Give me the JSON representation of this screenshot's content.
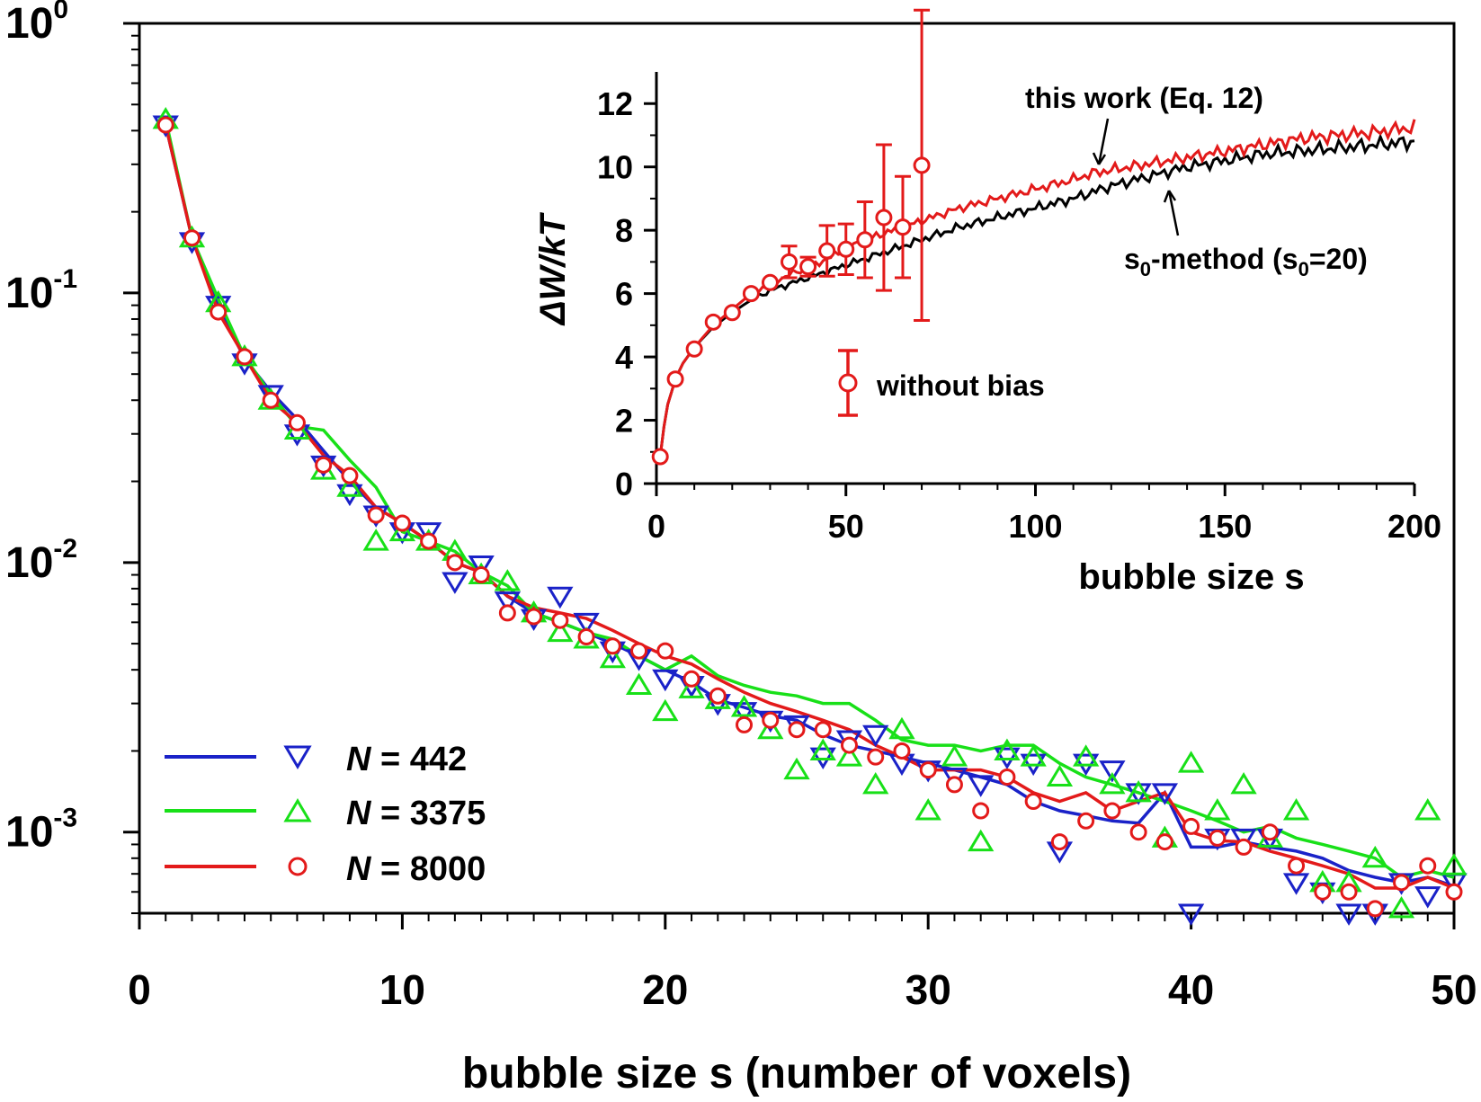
{
  "chart_data": [
    {
      "type": "scatter",
      "xlabel": "bubble size s (number of voxels)",
      "ylabel": "",
      "xlim": [
        0,
        50
      ],
      "ylim": [
        0.0005,
        1
      ],
      "yscale": "log",
      "x_ticks": [
        0,
        10,
        20,
        30,
        40,
        50
      ],
      "y_ticks": [
        {
          "base": "10",
          "exp": "0",
          "value": 1
        },
        {
          "base": "10",
          "exp": "-1",
          "value": 0.1
        },
        {
          "base": "10",
          "exp": "-2",
          "value": 0.01
        },
        {
          "base": "10",
          "exp": "-3",
          "value": 0.001
        }
      ],
      "legend_position": "bottom-left",
      "series": [
        {
          "name": "N = 442",
          "name_italic": "N",
          "name_rest": " = 442",
          "color": "#1a22c8",
          "marker": "triangle-down",
          "x": [
            1,
            2,
            3,
            4,
            5,
            6,
            7,
            8,
            9,
            10,
            11,
            12,
            13,
            14,
            15,
            16,
            17,
            18,
            19,
            20,
            21,
            22,
            23,
            24,
            25,
            26,
            27,
            28,
            29,
            30,
            31,
            32,
            33,
            34,
            35,
            36,
            37,
            38,
            39,
            40,
            41,
            42,
            43,
            44,
            45,
            46,
            47,
            48,
            49,
            50
          ],
          "points": [
            0.42,
            0.155,
            0.09,
            0.055,
            0.042,
            0.03,
            0.023,
            0.018,
            0.015,
            0.013,
            0.013,
            0.0085,
            0.0098,
            0.0072,
            0.0062,
            0.0075,
            0.006,
            0.0047,
            0.0044,
            0.0037,
            0.0035,
            0.003,
            0.0028,
            0.0026,
            0.0025,
            0.0019,
            0.0022,
            0.0023,
            0.0018,
            0.0017,
            0.0016,
            0.0015,
            0.0019,
            0.0018,
            0.00085,
            0.0018,
            0.0017,
            0.0014,
            0.0014,
            0.0005,
            0.00095,
            0.00095,
            0.00095,
            0.00065,
            0.0006,
            0.0005,
            0.0005,
            0.00065,
            0.00058,
            0.00065
          ],
          "line": [
            0.42,
            0.16,
            0.09,
            0.057,
            0.043,
            0.034,
            0.026,
            0.02,
            0.016,
            0.014,
            0.012,
            0.01,
            0.0092,
            0.0075,
            0.0065,
            0.006,
            0.0055,
            0.005,
            0.0045,
            0.004,
            0.0036,
            0.0031,
            0.0029,
            0.0027,
            0.0026,
            0.0023,
            0.0021,
            0.002,
            0.0019,
            0.0018,
            0.0017,
            0.0016,
            0.0015,
            0.0013,
            0.0012,
            0.00115,
            0.0011,
            0.00108,
            0.0014,
            0.00088,
            0.00088,
            0.00092,
            0.00088,
            0.00085,
            0.0008,
            0.00072,
            0.00068,
            0.00065,
            0.00068,
            0.00063
          ]
        },
        {
          "name": "N = 3375",
          "name_italic": "N",
          "name_rest": " = 3375",
          "color": "#18e018",
          "marker": "triangle-up",
          "x": [
            1,
            2,
            3,
            4,
            5,
            6,
            7,
            8,
            9,
            10,
            11,
            12,
            13,
            14,
            15,
            16,
            17,
            18,
            19,
            20,
            21,
            22,
            23,
            24,
            25,
            26,
            27,
            28,
            29,
            30,
            31,
            32,
            33,
            34,
            35,
            36,
            37,
            38,
            39,
            40,
            41,
            42,
            43,
            44,
            45,
            46,
            47,
            48,
            49,
            50
          ],
          "points": [
            0.44,
            0.16,
            0.092,
            0.058,
            0.04,
            0.031,
            0.022,
            0.019,
            0.012,
            0.013,
            0.012,
            0.011,
            0.009,
            0.0085,
            0.0065,
            0.0055,
            0.0052,
            0.0044,
            0.0035,
            0.0028,
            0.0034,
            0.0031,
            0.0029,
            0.0024,
            0.0017,
            0.002,
            0.0019,
            0.0015,
            0.0024,
            0.0012,
            0.0019,
            0.00092,
            0.002,
            0.0019,
            0.0016,
            0.0019,
            0.0015,
            0.0014,
            0.00095,
            0.0018,
            0.0012,
            0.0015,
            0.00095,
            0.0012,
            0.00065,
            0.00065,
            0.0008,
            0.00052,
            0.0012,
            0.00075
          ],
          "line": [
            0.44,
            0.16,
            0.095,
            0.058,
            0.042,
            0.032,
            0.031,
            0.024,
            0.019,
            0.013,
            0.012,
            0.011,
            0.0092,
            0.0082,
            0.0065,
            0.006,
            0.0055,
            0.0052,
            0.0045,
            0.004,
            0.0045,
            0.0038,
            0.0035,
            0.0033,
            0.0032,
            0.003,
            0.003,
            0.0026,
            0.0022,
            0.0021,
            0.0021,
            0.002,
            0.0021,
            0.0021,
            0.0018,
            0.0016,
            0.0015,
            0.0014,
            0.0013,
            0.0012,
            0.0011,
            0.001,
            0.00105,
            0.00095,
            0.0009,
            0.00085,
            0.0008,
            0.00068,
            0.00072,
            0.00068
          ]
        },
        {
          "name": "N = 8000",
          "name_italic": "N",
          "name_rest": " = 8000",
          "color": "#e31a1a",
          "marker": "circle",
          "x": [
            1,
            2,
            3,
            4,
            5,
            6,
            7,
            8,
            9,
            10,
            11,
            12,
            13,
            14,
            15,
            16,
            17,
            18,
            19,
            20,
            21,
            22,
            23,
            24,
            25,
            26,
            27,
            28,
            29,
            30,
            31,
            32,
            33,
            34,
            35,
            36,
            37,
            38,
            39,
            40,
            41,
            42,
            43,
            44,
            45,
            46,
            47,
            48,
            49,
            50
          ],
          "points": [
            0.42,
            0.16,
            0.085,
            0.058,
            0.04,
            0.033,
            0.023,
            0.021,
            0.015,
            0.014,
            0.012,
            0.01,
            0.009,
            0.0065,
            0.0063,
            0.0061,
            0.0053,
            0.0049,
            0.0047,
            0.0047,
            0.0037,
            0.0032,
            0.0025,
            0.0026,
            0.0024,
            0.0024,
            0.0021,
            0.0019,
            0.002,
            0.0017,
            0.0015,
            0.0012,
            0.0016,
            0.0013,
            0.00092,
            0.0011,
            0.0012,
            0.001,
            0.00092,
            0.00105,
            0.00095,
            0.00088,
            0.001,
            0.00075,
            0.0006,
            0.0006,
            0.00052,
            0.00065,
            0.00075,
            0.0006
          ],
          "line": [
            0.42,
            0.16,
            0.085,
            0.058,
            0.04,
            0.033,
            0.025,
            0.021,
            0.016,
            0.014,
            0.012,
            0.01,
            0.0092,
            0.0075,
            0.0068,
            0.0065,
            0.0062,
            0.0056,
            0.005,
            0.0045,
            0.0042,
            0.0037,
            0.0033,
            0.003,
            0.0028,
            0.0026,
            0.0024,
            0.0021,
            0.0019,
            0.0017,
            0.0017,
            0.0017,
            0.0016,
            0.0014,
            0.0013,
            0.0014,
            0.0012,
            0.0013,
            0.0014,
            0.001,
            0.00093,
            0.00092,
            0.00085,
            0.0008,
            0.00075,
            0.0007,
            0.00062,
            0.00062,
            0.00068,
            0.00062
          ]
        }
      ]
    },
    {
      "type": "line",
      "xlabel": "bubble size s",
      "ylabel_italic_part": "ΔW/kT",
      "ylabel": "ΔW/kT",
      "xlim": [
        0,
        200
      ],
      "ylim": [
        0,
        13
      ],
      "x_ticks": [
        0,
        50,
        100,
        150,
        200
      ],
      "y_ticks": [
        0,
        2,
        4,
        6,
        8,
        10,
        12
      ],
      "annotations": {
        "this_work": "this work (Eq. 12)",
        "s0_a": "s",
        "s0_sub1": "0",
        "s0_b": "-method (s",
        "s0_sub2": "0",
        "s0_c": "=20)",
        "legend": "without bias"
      },
      "lines": [
        {
          "name": "this work (Eq. 12)",
          "color": "#e31a1a",
          "x": [
            1,
            2,
            3,
            5,
            7,
            10,
            15,
            20,
            25,
            30,
            35,
            40,
            45,
            50,
            55,
            60,
            65,
            70,
            75,
            80,
            90,
            100,
            110,
            115,
            120,
            130,
            140,
            150,
            160,
            170,
            180,
            190,
            200
          ],
          "y": [
            0.85,
            1.8,
            2.5,
            3.3,
            3.8,
            4.3,
            5.0,
            5.5,
            6.0,
            6.3,
            6.6,
            6.8,
            7.1,
            7.4,
            7.7,
            7.9,
            8.1,
            8.3,
            8.5,
            8.7,
            9.0,
            9.3,
            9.6,
            9.8,
            9.9,
            10.1,
            10.3,
            10.5,
            10.7,
            10.9,
            11.0,
            11.1,
            11.25
          ]
        },
        {
          "name": "s0-method (s0=20)",
          "color": "#000000",
          "x": [
            1,
            2,
            3,
            5,
            7,
            10,
            15,
            20,
            25,
            30,
            35,
            40,
            45,
            50,
            55,
            60,
            65,
            70,
            75,
            80,
            90,
            100,
            110,
            115,
            120,
            130,
            140,
            150,
            160,
            170,
            180,
            190,
            200
          ],
          "y": [
            0.85,
            1.8,
            2.5,
            3.3,
            3.8,
            4.3,
            4.95,
            5.4,
            5.8,
            6.1,
            6.3,
            6.5,
            6.7,
            6.9,
            7.1,
            7.3,
            7.5,
            7.7,
            7.9,
            8.1,
            8.4,
            8.7,
            9.0,
            9.2,
            9.4,
            9.7,
            10.0,
            10.2,
            10.4,
            10.5,
            10.6,
            10.7,
            10.8
          ]
        }
      ],
      "points": {
        "name": "without bias",
        "color": "#e31a1a",
        "x": [
          1,
          5,
          10,
          15,
          20,
          25,
          30,
          35,
          40,
          45,
          50,
          55,
          60,
          65,
          70
        ],
        "y": [
          0.85,
          3.3,
          4.25,
          5.1,
          5.4,
          6.0,
          6.35,
          7.0,
          6.85,
          7.35,
          7.4,
          7.7,
          8.4,
          8.1,
          10.05
        ],
        "err": [
          0,
          0,
          0,
          0,
          0,
          0,
          0,
          0.5,
          0.3,
          0.8,
          0.8,
          1.2,
          2.3,
          1.6,
          4.9
        ]
      }
    }
  ]
}
